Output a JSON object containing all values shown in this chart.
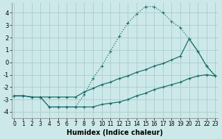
{
  "xlabel": "Humidex (Indice chaleur)",
  "background_color": "#cce8e8",
  "grid_color": "#aacccc",
  "line_color": "#1a6b6b",
  "x_ticks": [
    0,
    1,
    2,
    3,
    4,
    5,
    6,
    7,
    8,
    9,
    10,
    11,
    12,
    13,
    14,
    15,
    16,
    17,
    18,
    19,
    20,
    21,
    22,
    23
  ],
  "y_ticks": [
    -4,
    -3,
    -2,
    -1,
    0,
    1,
    2,
    3,
    4
  ],
  "ylim": [
    -4.5,
    4.8
  ],
  "xlim": [
    -0.3,
    23.3
  ],
  "series1_x": [
    0,
    1,
    2,
    3,
    4,
    5,
    6,
    7,
    8,
    9,
    10,
    11,
    12,
    13,
    14,
    15,
    16,
    17,
    18,
    19,
    20,
    21,
    22,
    23
  ],
  "series1_y": [
    -2.7,
    -2.7,
    -2.8,
    -2.8,
    -3.6,
    -3.6,
    -3.6,
    -3.6,
    -2.6,
    -1.3,
    -0.3,
    0.9,
    2.1,
    3.2,
    3.9,
    4.5,
    4.5,
    4.0,
    3.3,
    2.8,
    1.9,
    0.9,
    -0.3,
    -1.1
  ],
  "series2_x": [
    0,
    1,
    2,
    3,
    4,
    5,
    6,
    7,
    8,
    9,
    10,
    11,
    12,
    13,
    14,
    15,
    16,
    17,
    18,
    19,
    20,
    21,
    22,
    23
  ],
  "series2_y": [
    -2.7,
    -2.7,
    -2.8,
    -2.8,
    -2.8,
    -2.8,
    -2.8,
    -2.8,
    -2.4,
    -2.1,
    -1.8,
    -1.6,
    -1.3,
    -1.1,
    -0.8,
    -0.6,
    -0.3,
    -0.1,
    0.2,
    0.5,
    1.9,
    0.9,
    -0.3,
    -1.1
  ],
  "series3_x": [
    0,
    1,
    2,
    3,
    4,
    5,
    6,
    7,
    8,
    9,
    10,
    11,
    12,
    13,
    14,
    15,
    16,
    17,
    18,
    19,
    20,
    21,
    22,
    23
  ],
  "series3_y": [
    -2.7,
    -2.7,
    -2.8,
    -2.8,
    -3.6,
    -3.6,
    -3.6,
    -3.6,
    -3.6,
    -3.6,
    -3.4,
    -3.3,
    -3.2,
    -3.0,
    -2.7,
    -2.5,
    -2.2,
    -2.0,
    -1.8,
    -1.6,
    -1.3,
    -1.1,
    -1.0,
    -1.1
  ]
}
